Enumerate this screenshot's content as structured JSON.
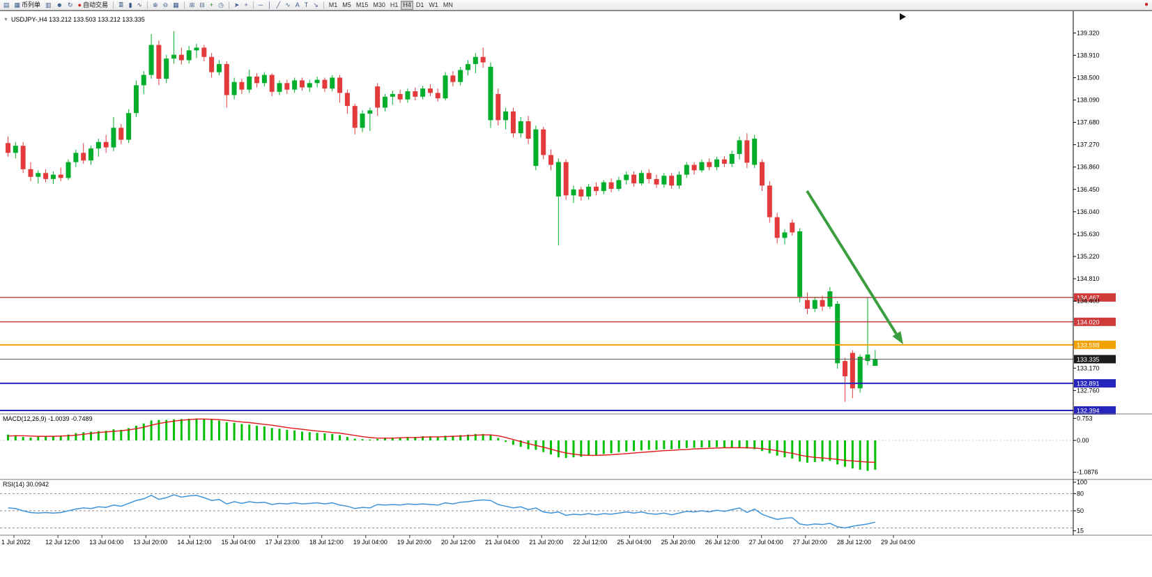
{
  "toolbar": {
    "items": [
      {
        "name": "terminal-button",
        "icon_name": "terminal-icon",
        "glyph": "▤"
      },
      {
        "name": "new-order-button",
        "icon_name": "new-order-icon",
        "glyph": "▦",
        "label": "币列单"
      },
      {
        "name": "chart-window-button",
        "icon_name": "chart-window-icon",
        "glyph": "▥"
      },
      {
        "name": "profile-button",
        "icon_name": "profile-icon",
        "glyph": "☻"
      },
      {
        "name": "refresh-button",
        "icon_name": "refresh-icon",
        "glyph": "↻"
      },
      {
        "name": "auto-trading-button",
        "icon_name": "auto-trading-icon",
        "glyph": "●",
        "glyph_color": "#cc2222",
        "label": "自动交易"
      },
      {
        "sep": true
      },
      {
        "name": "bar-chart-type-button",
        "icon_name": "bar-chart-icon",
        "glyph": "≣"
      },
      {
        "name": "candle-chart-type-button",
        "icon_name": "candlestick-icon",
        "glyph": "▮"
      },
      {
        "name": "line-chart-type-button",
        "icon_name": "line-chart-icon",
        "glyph": "∿"
      },
      {
        "sep": true
      },
      {
        "name": "zoom-in-button",
        "icon_name": "zoom-in-icon",
        "glyph": "⊕"
      },
      {
        "name": "zoom-out-button",
        "icon_name": "zoom-out-icon",
        "glyph": "⊖"
      },
      {
        "name": "tile-windows-button",
        "icon_name": "tile-windows-icon",
        "glyph": "▦"
      },
      {
        "sep": true
      },
      {
        "name": "arrange-button",
        "icon_name": "arrange-icon",
        "glyph": "⊞"
      },
      {
        "name": "cascade-button",
        "icon_name": "cascade-icon",
        "glyph": "⊟"
      },
      {
        "name": "add-indicator-button",
        "icon_name": "add-indicator-icon",
        "glyph": "+",
        "glyph_color": "#1d8a1d"
      },
      {
        "name": "period-button",
        "icon_name": "clock-icon",
        "glyph": "◷"
      },
      {
        "sep": true
      },
      {
        "name": "cursor-button",
        "icon_name": "cursor-icon",
        "glyph": "➤"
      },
      {
        "name": "crosshair-button",
        "icon_name": "crosshair-icon",
        "glyph": "+"
      },
      {
        "sep": true
      },
      {
        "name": "hline-tool-button",
        "icon_name": "horizontal-line-icon",
        "glyph": "─"
      },
      {
        "name": "vline-tool-button",
        "icon_name": "vertical-line-icon",
        "glyph": "│"
      },
      {
        "name": "trendline-tool-button",
        "icon_name": "trendline-icon",
        "glyph": "╱"
      },
      {
        "name": "channel-tool-button",
        "icon_name": "channel-icon",
        "glyph": "∿"
      },
      {
        "name": "text-tool-button",
        "icon_name": "text-tool-icon",
        "glyph": "A"
      },
      {
        "name": "label-tool-button",
        "icon_name": "label-tool-icon",
        "glyph": "T"
      },
      {
        "name": "arrow-tool-button",
        "icon_name": "arrow-tool-icon",
        "glyph": "↘"
      },
      {
        "sep": true
      }
    ],
    "timeframes": [
      "M1",
      "M5",
      "M15",
      "M30",
      "H1",
      "H4",
      "D1",
      "W1",
      "MN"
    ],
    "active_timeframe": "H4",
    "broker_icon_glyph": "●",
    "broker_icon_color": "#cc2222"
  },
  "chart_header": {
    "marker": "▼",
    "symbol_line": "USDJPY-,H4  133.212 133.503 133.212 133.335"
  },
  "panels": {
    "macd_label": "MACD(12,26,9) -1.0039 -0.7489",
    "rsi_label": "RSI(14) 30.0942"
  },
  "colors": {
    "bull": "#00ae2b",
    "bear": "#e33b3b",
    "macd_hist": "#00c000",
    "macd_signal": "#e01717",
    "rsi_line": "#3f93d8",
    "arrow": "#3a9e3f",
    "axis_text": "#000000"
  },
  "levels": [
    {
      "price": 134.467,
      "color": "#b23b3b",
      "badge": "#cf3b3b",
      "width": 1.4
    },
    {
      "price": 134.02,
      "color": "#c03030",
      "badge": "#cf3b3b",
      "width": 1.4
    },
    {
      "price": 133.598,
      "color": "#f2a200",
      "badge": "#f2a200",
      "width": 2
    },
    {
      "price": 133.335,
      "color": "#555555",
      "badge": "#1c1c1c",
      "width": 1
    },
    {
      "price": 132.891,
      "color": "#2626bd",
      "badge": "#2626bd",
      "width": 2
    },
    {
      "price": 132.394,
      "color": "#2626bd",
      "badge": "#2626bd",
      "width": 2
    }
  ],
  "price_axis": {
    "plain_labels": [
      139.32,
      138.91,
      138.5,
      138.09,
      137.68,
      137.27,
      136.86,
      136.45,
      136.04,
      135.63,
      135.22,
      134.81,
      134.4,
      133.17,
      132.76
    ]
  },
  "chart_data": {
    "type": "candlestick",
    "symbol": "USDJPY-",
    "timeframe": "H4",
    "current_bar": {
      "open": 133.212,
      "high": 133.503,
      "low": 133.212,
      "close": 133.335
    },
    "price_range_top": 139.72,
    "price_range_bottom": 132.33,
    "candles": [
      [
        137.3,
        137.42,
        137.05,
        137.12
      ],
      [
        137.12,
        137.32,
        137.02,
        137.25
      ],
      [
        137.25,
        137.32,
        136.75,
        136.82
      ],
      [
        136.82,
        136.95,
        136.6,
        136.68
      ],
      [
        136.68,
        136.8,
        136.56,
        136.75
      ],
      [
        136.75,
        136.82,
        136.58,
        136.64
      ],
      [
        136.64,
        136.78,
        136.55,
        136.72
      ],
      [
        136.72,
        136.85,
        136.6,
        136.66
      ],
      [
        136.66,
        137.0,
        136.62,
        136.95
      ],
      [
        136.95,
        137.18,
        136.86,
        137.12
      ],
      [
        137.12,
        137.3,
        136.92,
        136.98
      ],
      [
        136.98,
        137.25,
        136.9,
        137.2
      ],
      [
        137.2,
        137.38,
        137.05,
        137.32
      ],
      [
        137.32,
        137.45,
        137.12,
        137.22
      ],
      [
        137.22,
        137.78,
        137.15,
        137.58
      ],
      [
        137.58,
        137.65,
        137.28,
        137.36
      ],
      [
        137.36,
        137.92,
        137.3,
        137.85
      ],
      [
        137.85,
        138.45,
        137.78,
        138.36
      ],
      [
        138.36,
        138.62,
        138.2,
        138.55
      ],
      [
        138.55,
        139.3,
        138.48,
        139.1
      ],
      [
        139.1,
        139.18,
        138.36,
        138.48
      ],
      [
        138.48,
        138.92,
        138.4,
        138.85
      ],
      [
        138.85,
        139.35,
        138.76,
        138.92
      ],
      [
        138.92,
        139.05,
        138.74,
        138.82
      ],
      [
        138.82,
        139.08,
        138.76,
        139.0
      ],
      [
        139.0,
        139.12,
        138.86,
        139.05
      ],
      [
        139.05,
        139.1,
        138.8,
        138.88
      ],
      [
        138.88,
        138.95,
        138.5,
        138.6
      ],
      [
        138.6,
        138.82,
        138.54,
        138.75
      ],
      [
        138.75,
        138.8,
        137.95,
        138.18
      ],
      [
        138.18,
        138.5,
        138.1,
        138.42
      ],
      [
        138.42,
        138.48,
        138.2,
        138.28
      ],
      [
        138.28,
        138.65,
        138.22,
        138.52
      ],
      [
        138.52,
        138.58,
        138.32,
        138.4
      ],
      [
        138.4,
        138.6,
        138.34,
        138.55
      ],
      [
        138.55,
        138.58,
        138.16,
        138.24
      ],
      [
        138.24,
        138.45,
        138.18,
        138.4
      ],
      [
        138.4,
        138.46,
        138.2,
        138.28
      ],
      [
        138.28,
        138.5,
        138.22,
        138.45
      ],
      [
        138.45,
        138.5,
        138.26,
        138.32
      ],
      [
        138.32,
        138.46,
        138.24,
        138.4
      ],
      [
        138.4,
        138.52,
        138.32,
        138.46
      ],
      [
        138.46,
        138.5,
        138.24,
        138.3
      ],
      [
        138.3,
        138.55,
        138.25,
        138.5
      ],
      [
        138.5,
        138.55,
        138.04,
        138.22
      ],
      [
        138.22,
        138.28,
        137.84,
        137.98
      ],
      [
        137.98,
        138.02,
        137.46,
        137.58
      ],
      [
        137.58,
        137.9,
        137.5,
        137.84
      ],
      [
        137.84,
        137.95,
        137.52,
        137.9
      ],
      [
        138.34,
        138.4,
        137.8,
        137.95
      ],
      [
        137.95,
        138.2,
        137.88,
        138.15
      ],
      [
        138.15,
        138.26,
        138.0,
        138.2
      ],
      [
        138.2,
        138.28,
        138.04,
        138.1
      ],
      [
        138.1,
        138.3,
        138.04,
        138.25
      ],
      [
        138.25,
        138.32,
        138.08,
        138.15
      ],
      [
        138.15,
        138.35,
        138.1,
        138.3
      ],
      [
        138.3,
        138.38,
        138.16,
        138.22
      ],
      [
        138.22,
        138.3,
        138.06,
        138.12
      ],
      [
        138.12,
        138.6,
        138.08,
        138.54
      ],
      [
        138.54,
        138.62,
        138.34,
        138.42
      ],
      [
        138.42,
        138.7,
        138.36,
        138.64
      ],
      [
        138.64,
        138.82,
        138.54,
        138.75
      ],
      [
        138.75,
        138.95,
        138.58,
        138.88
      ],
      [
        138.88,
        139.05,
        138.68,
        138.78
      ],
      [
        137.72,
        138.78,
        137.58,
        138.7
      ],
      [
        138.2,
        138.3,
        137.62,
        137.72
      ],
      [
        137.72,
        137.95,
        137.55,
        137.88
      ],
      [
        137.88,
        137.95,
        137.4,
        137.48
      ],
      [
        137.48,
        137.78,
        137.4,
        137.7
      ],
      [
        137.7,
        137.8,
        137.28,
        137.38
      ],
      [
        136.88,
        137.62,
        136.8,
        137.55
      ],
      [
        137.55,
        137.6,
        137.0,
        137.08
      ],
      [
        137.08,
        137.18,
        136.8,
        136.9
      ],
      [
        136.32,
        137.02,
        135.42,
        136.95
      ],
      [
        136.95,
        137.0,
        136.26,
        136.34
      ],
      [
        136.34,
        136.52,
        136.2,
        136.45
      ],
      [
        136.45,
        136.5,
        136.24,
        136.32
      ],
      [
        136.32,
        136.55,
        136.26,
        136.5
      ],
      [
        136.5,
        136.58,
        136.34,
        136.42
      ],
      [
        136.42,
        136.62,
        136.36,
        136.58
      ],
      [
        136.58,
        136.65,
        136.4,
        136.46
      ],
      [
        136.46,
        136.68,
        136.42,
        136.62
      ],
      [
        136.62,
        136.78,
        136.54,
        136.72
      ],
      [
        136.72,
        136.78,
        136.5,
        136.56
      ],
      [
        136.56,
        136.8,
        136.52,
        136.75
      ],
      [
        136.75,
        136.82,
        136.56,
        136.64
      ],
      [
        136.64,
        136.72,
        136.48,
        136.54
      ],
      [
        136.54,
        136.75,
        136.48,
        136.7
      ],
      [
        136.7,
        136.75,
        136.46,
        136.52
      ],
      [
        136.52,
        136.78,
        136.46,
        136.72
      ],
      [
        136.72,
        136.95,
        136.66,
        136.9
      ],
      [
        136.9,
        136.95,
        136.72,
        136.8
      ],
      [
        136.8,
        137.0,
        136.76,
        136.95
      ],
      [
        136.95,
        137.02,
        136.8,
        136.86
      ],
      [
        136.86,
        137.05,
        136.8,
        137.0
      ],
      [
        137.0,
        137.06,
        136.86,
        136.92
      ],
      [
        136.92,
        137.16,
        136.86,
        137.1
      ],
      [
        137.1,
        137.42,
        137.0,
        137.35
      ],
      [
        137.35,
        137.48,
        136.84,
        136.94
      ],
      [
        136.9,
        137.45,
        136.84,
        137.38
      ],
      [
        136.95,
        137.0,
        136.42,
        136.52
      ],
      [
        136.52,
        136.6,
        135.84,
        135.94
      ],
      [
        135.94,
        136.02,
        135.46,
        135.56
      ],
      [
        135.56,
        135.72,
        135.44,
        135.66
      ],
      [
        135.84,
        135.9,
        135.6,
        135.66
      ],
      [
        134.48,
        135.74,
        134.38,
        135.68
      ],
      [
        134.42,
        134.56,
        134.16,
        134.26
      ],
      [
        134.26,
        134.48,
        134.2,
        134.42
      ],
      [
        134.42,
        134.5,
        134.22,
        134.3
      ],
      [
        134.3,
        134.66,
        134.26,
        134.58
      ],
      [
        133.26,
        134.4,
        133.16,
        134.35
      ],
      [
        133.3,
        133.36,
        132.55,
        133.02
      ],
      [
        133.45,
        133.5,
        132.62,
        132.8
      ],
      [
        132.8,
        133.42,
        132.72,
        133.38
      ],
      [
        133.3,
        134.46,
        133.22,
        133.42
      ],
      [
        133.212,
        133.503,
        133.212,
        133.335
      ]
    ],
    "time_labels": [
      "1 Jul 2022",
      "12 Jul 12:00",
      "13 Jul 04:00",
      "13 Jul 20:00",
      "14 Jul 12:00",
      "15 Jul 04:00",
      "17 Jul 23:00",
      "18 Jul 12:00",
      "19 Jul 04:00",
      "19 Jul 20:00",
      "20 Jul 12:00",
      "21 Jul 04:00",
      "21 Jul 20:00",
      "22 Jul 12:00",
      "25 Jul 04:00",
      "25 Jul 20:00",
      "26 Jul 12:00",
      "27 Jul 04:00",
      "27 Jul 20:00",
      "28 Jul 12:00",
      "29 Jul 04:00"
    ],
    "macd": {
      "params": "12,26,9",
      "main_value": -1.0039,
      "signal_value": -0.7489,
      "scale_labels": [
        0.753,
        0.0,
        -1.0876
      ],
      "histogram": [
        0.2,
        0.18,
        0.12,
        0.1,
        0.12,
        0.15,
        0.14,
        0.16,
        0.2,
        0.25,
        0.28,
        0.3,
        0.32,
        0.33,
        0.38,
        0.36,
        0.42,
        0.5,
        0.58,
        0.68,
        0.7,
        0.7,
        0.72,
        0.73,
        0.74,
        0.75,
        0.74,
        0.7,
        0.68,
        0.62,
        0.6,
        0.56,
        0.54,
        0.5,
        0.48,
        0.42,
        0.4,
        0.36,
        0.34,
        0.3,
        0.28,
        0.26,
        0.24,
        0.22,
        0.18,
        0.12,
        0.06,
        0.04,
        0.03,
        0.05,
        0.08,
        0.1,
        0.1,
        0.12,
        0.12,
        0.14,
        0.14,
        0.12,
        0.16,
        0.16,
        0.18,
        0.2,
        0.22,
        0.22,
        0.18,
        0.08,
        -0.05,
        -0.15,
        -0.22,
        -0.3,
        -0.32,
        -0.4,
        -0.48,
        -0.58,
        -0.6,
        -0.58,
        -0.56,
        -0.52,
        -0.5,
        -0.46,
        -0.44,
        -0.4,
        -0.38,
        -0.36,
        -0.34,
        -0.32,
        -0.32,
        -0.3,
        -0.3,
        -0.28,
        -0.26,
        -0.25,
        -0.24,
        -0.24,
        -0.23,
        -0.24,
        -0.25,
        -0.24,
        -0.28,
        -0.3,
        -0.36,
        -0.44,
        -0.52,
        -0.58,
        -0.62,
        -0.72,
        -0.76,
        -0.74,
        -0.72,
        -0.7,
        -0.82,
        -0.9,
        -0.96,
        -1.0,
        -1.04,
        -1.0039
      ],
      "signal": [
        0.15,
        0.16,
        0.16,
        0.15,
        0.14,
        0.14,
        0.14,
        0.15,
        0.16,
        0.18,
        0.21,
        0.24,
        0.27,
        0.29,
        0.31,
        0.33,
        0.36,
        0.4,
        0.45,
        0.52,
        0.58,
        0.62,
        0.66,
        0.69,
        0.71,
        0.73,
        0.73,
        0.72,
        0.71,
        0.69,
        0.66,
        0.63,
        0.61,
        0.58,
        0.55,
        0.52,
        0.48,
        0.44,
        0.41,
        0.38,
        0.35,
        0.32,
        0.3,
        0.27,
        0.25,
        0.21,
        0.17,
        0.13,
        0.1,
        0.08,
        0.08,
        0.08,
        0.09,
        0.1,
        0.1,
        0.11,
        0.12,
        0.12,
        0.13,
        0.14,
        0.15,
        0.16,
        0.18,
        0.19,
        0.19,
        0.16,
        0.1,
        0.03,
        -0.04,
        -0.11,
        -0.17,
        -0.23,
        -0.3,
        -0.37,
        -0.43,
        -0.47,
        -0.5,
        -0.51,
        -0.51,
        -0.5,
        -0.49,
        -0.47,
        -0.45,
        -0.43,
        -0.41,
        -0.39,
        -0.37,
        -0.35,
        -0.34,
        -0.32,
        -0.31,
        -0.29,
        -0.28,
        -0.27,
        -0.26,
        -0.25,
        -0.25,
        -0.25,
        -0.25,
        -0.26,
        -0.28,
        -0.31,
        -0.35,
        -0.4,
        -0.44,
        -0.5,
        -0.55,
        -0.58,
        -0.6,
        -0.62,
        -0.65,
        -0.68,
        -0.7,
        -0.72,
        -0.74,
        -0.7489
      ]
    },
    "rsi": {
      "period": 14,
      "value": 30.0942,
      "scale_labels": [
        100,
        80,
        50,
        15
      ],
      "dashed_levels": [
        80,
        50,
        20
      ],
      "values": [
        55,
        54,
        50,
        47,
        46,
        47,
        46,
        47,
        50,
        53,
        55,
        54,
        57,
        56,
        60,
        58,
        63,
        68,
        71,
        77,
        70,
        73,
        78,
        74,
        76,
        77,
        73,
        68,
        70,
        62,
        66,
        63,
        66,
        64,
        65,
        61,
        63,
        62,
        64,
        62,
        63,
        64,
        62,
        64,
        60,
        58,
        54,
        56,
        55,
        61,
        60,
        61,
        60,
        62,
        61,
        62,
        61,
        60,
        64,
        62,
        65,
        66,
        68,
        69,
        68,
        61,
        58,
        55,
        57,
        52,
        55,
        48,
        46,
        48,
        42,
        44,
        43,
        45,
        43,
        45,
        44,
        46,
        48,
        46,
        48,
        45,
        44,
        46,
        43,
        46,
        49,
        48,
        50,
        48,
        51,
        49,
        52,
        55,
        47,
        53,
        44,
        39,
        35,
        37,
        38,
        27,
        25,
        27,
        26,
        28,
        22,
        20,
        23,
        25,
        27,
        30.0942
      ]
    }
  }
}
